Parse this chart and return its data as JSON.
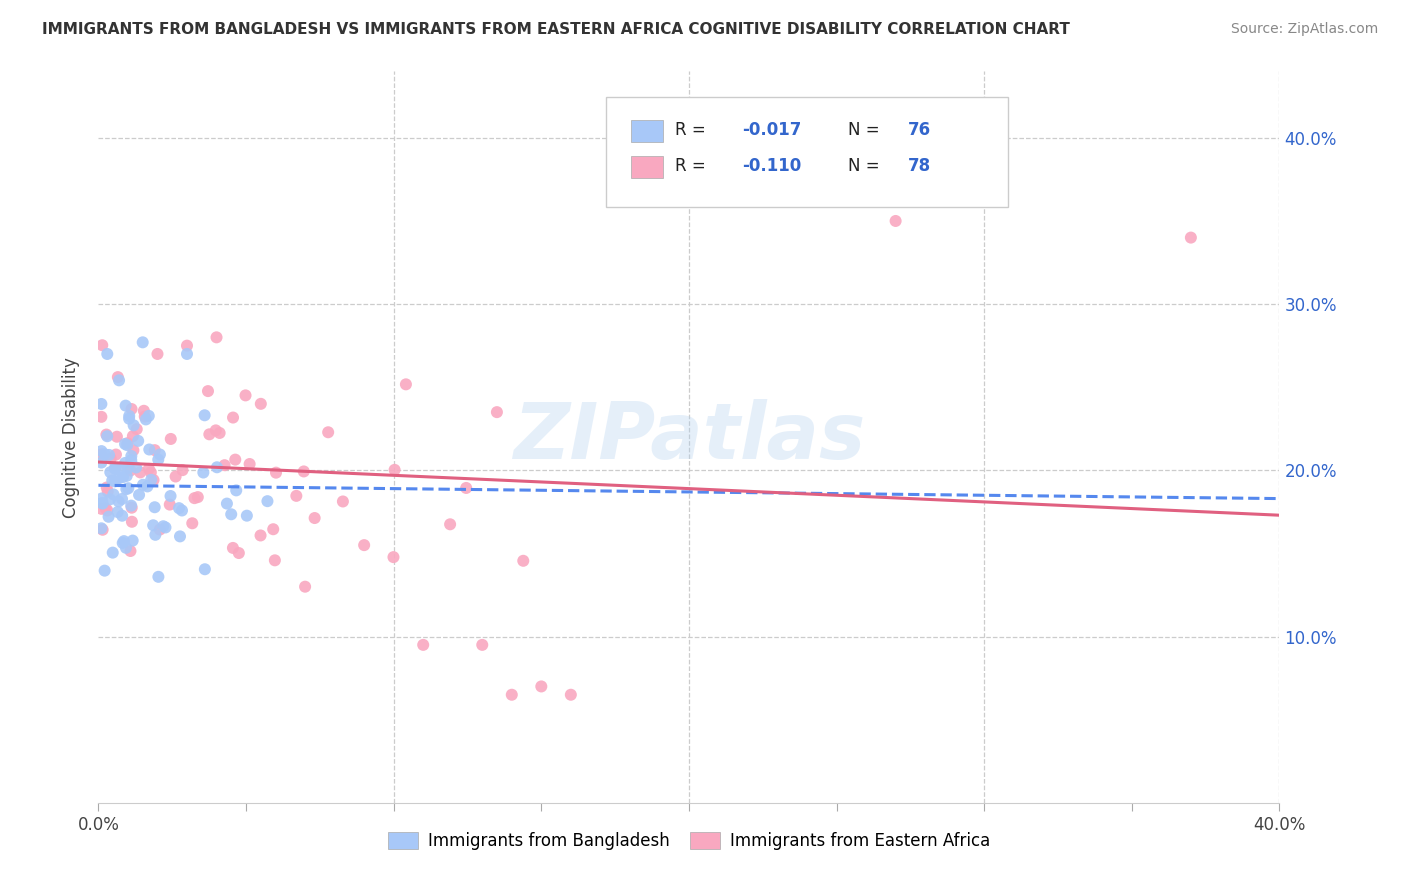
{
  "title": "IMMIGRANTS FROM BANGLADESH VS IMMIGRANTS FROM EASTERN AFRICA COGNITIVE DISABILITY CORRELATION CHART",
  "source": "Source: ZipAtlas.com",
  "ylabel": "Cognitive Disability",
  "watermark": "ZIPatlas",
  "bangladesh_R": -0.017,
  "bangladesh_N": 76,
  "easternAfrica_R": -0.11,
  "easternAfrica_N": 78,
  "xlim": [
    0.0,
    0.4
  ],
  "ylim": [
    0.0,
    0.44
  ],
  "yticks": [
    0.1,
    0.2,
    0.3,
    0.4
  ],
  "xticks": [
    0.0,
    0.05,
    0.1,
    0.15,
    0.2,
    0.25,
    0.3,
    0.35,
    0.4
  ],
  "color_bangladesh": "#a8c8f8",
  "color_eastern_africa": "#f9a8c0",
  "trendline_bangladesh": "#5588ee",
  "trendline_eastern_africa": "#e06080",
  "background_color": "#ffffff",
  "grid_color": "#cccccc",
  "legend_label_color": "#222222",
  "legend_value_color": "#3366cc",
  "bd_trendline_y0": 0.191,
  "bd_trendline_y1": 0.183,
  "ea_trendline_y0": 0.205,
  "ea_trendline_y1": 0.173
}
